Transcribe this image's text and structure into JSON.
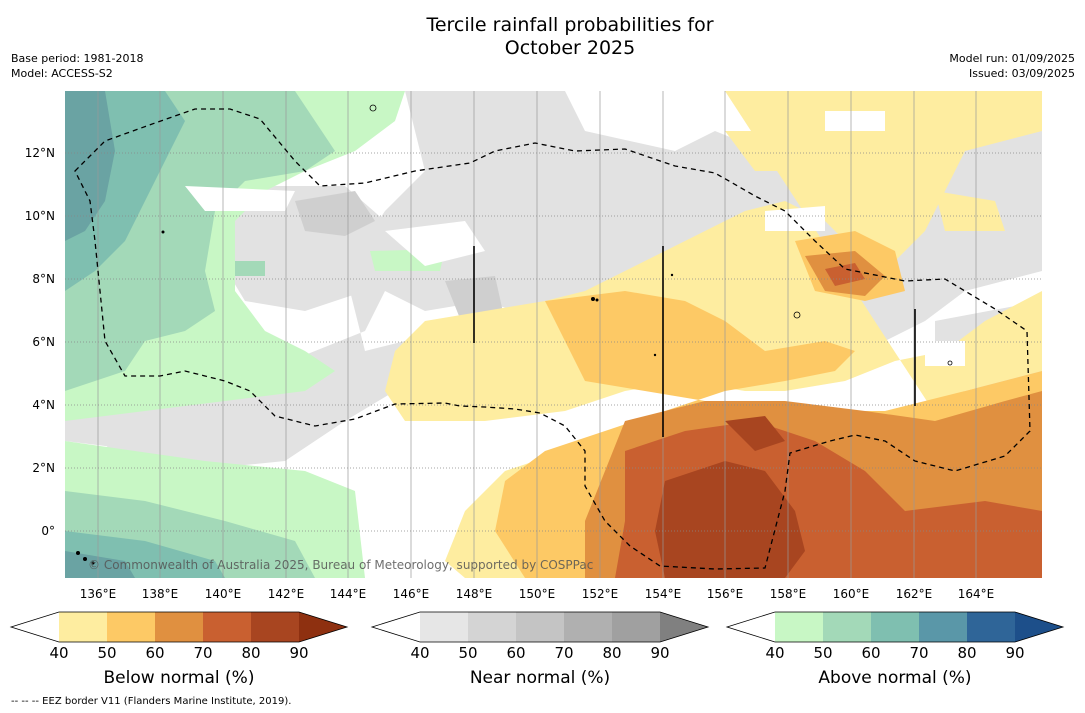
{
  "title_line1": "Tercile rainfall probabilities for",
  "title_line2": "October 2025",
  "meta": {
    "base_period": "Base period: 1981-2018",
    "model": "Model: ACCESS-S2",
    "model_run": "Model run: 01/09/2025",
    "issued": "Issued: 03/09/2025"
  },
  "map": {
    "lat_labels": [
      "12°N",
      "10°N",
      "8°N",
      "6°N",
      "4°N",
      "2°N",
      "0°"
    ],
    "lon_labels": [
      "136°E",
      "138°E",
      "140°E",
      "142°E",
      "144°E",
      "146°E",
      "148°E",
      "150°E",
      "152°E",
      "154°E",
      "156°E",
      "158°E",
      "160°E",
      "162°E",
      "164°E"
    ],
    "copyright": "© Commonwealth of Australia 2025, Bureau of Meteorology, supported by COSPPac",
    "legend_border": "-- -- -- EEZ border V11 (Flanders Marine Institute, 2019)."
  },
  "colorbars": {
    "ticks": [
      "40",
      "50",
      "60",
      "70",
      "80",
      "90"
    ],
    "below": {
      "title": "Below normal (%)",
      "colors": [
        "#ffffff",
        "#feeda0",
        "#fdc965",
        "#e09040",
        "#c96030",
        "#a84520",
        "#8e3010"
      ]
    },
    "near": {
      "title": "Near normal (%)",
      "colors": [
        "#ffffff",
        "#e6e6e6",
        "#d4d4d4",
        "#c4c4c4",
        "#b0b0b0",
        "#a0a0a0",
        "#808080"
      ]
    },
    "above": {
      "title": "Above normal (%)",
      "colors": [
        "#ffffff",
        "#c8f7c5",
        "#a3d9b8",
        "#7fbfb0",
        "#5a97a8",
        "#2f6598",
        "#1d4f8a"
      ]
    }
  }
}
